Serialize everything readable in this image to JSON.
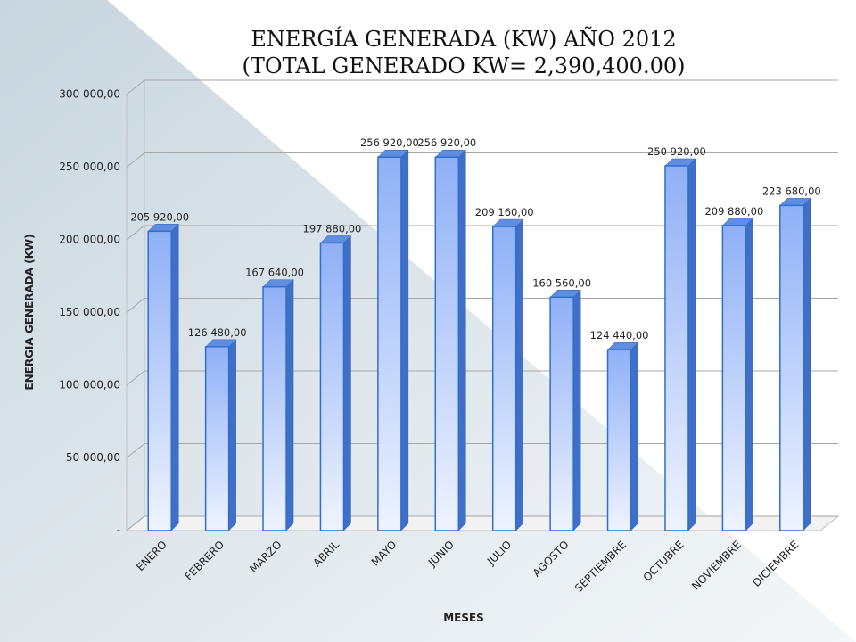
{
  "chart_data": {
    "type": "bar",
    "title": [
      "ENERGÍA GENERADA (KW) AÑO 2012",
      "(TOTAL GENERADO KW=  2,390,400.00)"
    ],
    "x_label": "MESES",
    "y_label": "ENERGIA GENERADA (KW)",
    "categories": [
      "ENERO",
      "FEBRERO",
      "MARZO",
      "ABRIL",
      "MAYO",
      "JUNIO",
      "JULIO",
      "AGOSTO",
      "SEPTIEMBRE",
      "OCTUBRE",
      "NOVIEMBRE",
      "DICIEMBRE"
    ],
    "values": [
      205920,
      126480,
      167640,
      197880,
      256920,
      256920,
      209160,
      160560,
      124440,
      250920,
      209880,
      223680
    ],
    "value_labels": [
      "205 920,00",
      "126 480,00",
      "167 640,00",
      "197 880,00",
      "256 920,00",
      "256 920,00",
      "209 160,00",
      "160 560,00",
      "124 440,00",
      "250 920,00",
      "209 880,00",
      "223 680,00"
    ],
    "color": "#8fb4f5",
    "ylim": [
      0,
      300000
    ],
    "yticks": [
      {
        "value": 0,
        "label": "-"
      },
      {
        "value": 50000,
        "label": "50 000,00"
      },
      {
        "value": 100000,
        "label": "100 000,00"
      },
      {
        "value": 150000,
        "label": "150 000,00"
      },
      {
        "value": 200000,
        "label": "200 000,00"
      },
      {
        "value": 250000,
        "label": "250 000,00"
      },
      {
        "value": 300000,
        "label": "300 000,00"
      }
    ],
    "grid": true
  }
}
